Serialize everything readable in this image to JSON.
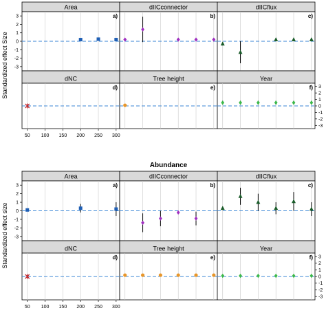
{
  "chart_data": [
    {
      "type": "scatter",
      "title": "",
      "xlabel": "",
      "ylabel": "Standardized effect Size",
      "x_ticks": [
        50,
        100,
        150,
        200,
        250,
        300
      ],
      "y_ticks": [
        -3,
        -2,
        -1,
        0,
        1,
        2,
        3
      ],
      "xlim": [
        35,
        310
      ],
      "ylim": [
        -3.5,
        3.5
      ],
      "reference_line": 0,
      "panels": [
        {
          "name": "Area",
          "letter": "a)",
          "color": "#1f5fb5",
          "marker": "square",
          "points": [
            {
              "x": 200,
              "y": 0.2,
              "lo": 0.0,
              "hi": 0.4
            },
            {
              "x": 250,
              "y": 0.25,
              "lo": 0.05,
              "hi": 0.45
            },
            {
              "x": 300,
              "y": 0.2,
              "lo": 0.0,
              "hi": 0.4
            }
          ]
        },
        {
          "name": "dIICconnector",
          "letter": "b)",
          "color": "#a030c0",
          "marker": "diamond",
          "points": [
            {
              "x": 50,
              "y": 0.2,
              "lo": 0.0,
              "hi": 0.4
            },
            {
              "x": 100,
              "y": 1.4,
              "lo": -0.1,
              "hi": 2.9
            },
            {
              "x": 200,
              "y": 0.2,
              "lo": 0.0,
              "hi": 0.4
            },
            {
              "x": 250,
              "y": 0.2,
              "lo": 0.0,
              "hi": 0.4
            },
            {
              "x": 300,
              "y": 0.2,
              "lo": 0.0,
              "hi": 0.4
            }
          ]
        },
        {
          "name": "dIICflux",
          "letter": "c)",
          "color": "#1a5c2a",
          "marker": "triangle",
          "points": [
            {
              "x": 50,
              "y": -0.3,
              "lo": -0.5,
              "hi": -0.1
            },
            {
              "x": 100,
              "y": -1.3,
              "lo": -2.6,
              "hi": 0.0
            },
            {
              "x": 200,
              "y": 0.2,
              "lo": 0.0,
              "hi": 0.4
            },
            {
              "x": 250,
              "y": 0.2,
              "lo": 0.0,
              "hi": 0.4
            },
            {
              "x": 300,
              "y": 0.2,
              "lo": 0.0,
              "hi": 0.4
            }
          ]
        },
        {
          "name": "dNC",
          "letter": "d)",
          "color": "#c0282e",
          "marker": "cross",
          "points": [
            {
              "x": 50,
              "y": 0.0,
              "lo": 0.0,
              "hi": 0.0
            }
          ]
        },
        {
          "name": "Tree height",
          "letter": "e)",
          "color": "#e8962a",
          "marker": "circle",
          "points": [
            {
              "x": 50,
              "y": 0.1,
              "lo": -0.1,
              "hi": 0.3
            }
          ]
        },
        {
          "name": "Year",
          "letter": "f)",
          "color": "#3cb84a",
          "marker": "diamond",
          "points": [
            {
              "x": 50,
              "y": 0.5,
              "lo": 0.2,
              "hi": 0.8
            },
            {
              "x": 100,
              "y": 0.5,
              "lo": 0.2,
              "hi": 0.8
            },
            {
              "x": 150,
              "y": 0.5,
              "lo": 0.2,
              "hi": 0.8
            },
            {
              "x": 200,
              "y": 0.5,
              "lo": 0.2,
              "hi": 0.8
            },
            {
              "x": 250,
              "y": 0.5,
              "lo": 0.2,
              "hi": 0.8
            },
            {
              "x": 300,
              "y": 0.5,
              "lo": 0.2,
              "hi": 0.8
            }
          ]
        }
      ]
    },
    {
      "type": "scatter",
      "title": "",
      "xlabel": "Abundance",
      "ylabel": "Standardized effect size",
      "x_ticks": [
        50,
        100,
        150,
        200,
        250,
        300
      ],
      "y_ticks": [
        -3,
        -2,
        -1,
        0,
        1,
        2,
        3
      ],
      "xlim": [
        35,
        310
      ],
      "ylim": [
        -3.5,
        3.5
      ],
      "reference_line": 0,
      "panels": [
        {
          "name": "Area",
          "letter": "a)",
          "color": "#1f5fb5",
          "marker": "square",
          "points": [
            {
              "x": 50,
              "y": 0.1,
              "lo": 0.0,
              "hi": 0.2
            },
            {
              "x": 200,
              "y": 0.3,
              "lo": -0.2,
              "hi": 0.8
            },
            {
              "x": 300,
              "y": 0.2,
              "lo": -0.6,
              "hi": 1.0
            }
          ]
        },
        {
          "name": "dIICconnector",
          "letter": "b)",
          "color": "#a030c0",
          "marker": "diamond",
          "points": [
            {
              "x": 100,
              "y": -1.4,
              "lo": -2.5,
              "hi": -0.3
            },
            {
              "x": 150,
              "y": -0.9,
              "lo": -1.8,
              "hi": 0.0
            },
            {
              "x": 200,
              "y": -0.2,
              "lo": -0.3,
              "hi": -0.1
            },
            {
              "x": 250,
              "y": -0.9,
              "lo": -1.7,
              "hi": -0.1
            }
          ]
        },
        {
          "name": "dIICflux",
          "letter": "c)",
          "color": "#1a5c2a",
          "marker": "triangle",
          "points": [
            {
              "x": 50,
              "y": 0.3,
              "lo": 0.1,
              "hi": 0.5
            },
            {
              "x": 100,
              "y": 1.7,
              "lo": 0.7,
              "hi": 2.7
            },
            {
              "x": 150,
              "y": 1.0,
              "lo": 0.0,
              "hi": 2.0
            },
            {
              "x": 200,
              "y": 0.3,
              "lo": -0.4,
              "hi": 1.0
            },
            {
              "x": 250,
              "y": 1.1,
              "lo": 0.0,
              "hi": 2.2
            },
            {
              "x": 300,
              "y": 0.2,
              "lo": -0.6,
              "hi": 1.0
            }
          ]
        },
        {
          "name": "dNC",
          "letter": "d)",
          "color": "#c0282e",
          "marker": "cross",
          "points": [
            {
              "x": 50,
              "y": 0.0,
              "lo": 0.0,
              "hi": 0.0
            }
          ]
        },
        {
          "name": "Tree height",
          "letter": "e)",
          "color": "#e8962a",
          "marker": "circle",
          "points": [
            {
              "x": 50,
              "y": 0.2,
              "lo": 0.0,
              "hi": 0.4
            },
            {
              "x": 100,
              "y": 0.2,
              "lo": 0.0,
              "hi": 0.4
            },
            {
              "x": 150,
              "y": 0.2,
              "lo": 0.0,
              "hi": 0.4
            },
            {
              "x": 200,
              "y": 0.2,
              "lo": 0.0,
              "hi": 0.4
            },
            {
              "x": 250,
              "y": 0.2,
              "lo": 0.0,
              "hi": 0.4
            },
            {
              "x": 300,
              "y": 0.2,
              "lo": 0.0,
              "hi": 0.4
            }
          ]
        },
        {
          "name": "Year",
          "letter": "f)",
          "color": "#3cb84a",
          "marker": "diamond",
          "points": [
            {
              "x": 50,
              "y": 0.1,
              "lo": -0.1,
              "hi": 0.3
            },
            {
              "x": 100,
              "y": 0.1,
              "lo": -0.1,
              "hi": 0.3
            },
            {
              "x": 150,
              "y": 0.1,
              "lo": -0.1,
              "hi": 0.3
            },
            {
              "x": 200,
              "y": 0.1,
              "lo": -0.1,
              "hi": 0.3
            },
            {
              "x": 250,
              "y": 0.1,
              "lo": -0.1,
              "hi": 0.3
            },
            {
              "x": 300,
              "y": 0.1,
              "lo": -0.1,
              "hi": 0.3
            }
          ]
        }
      ]
    }
  ],
  "colors": {
    "strip_bg": "#d9d9d9",
    "grid": "#c8c8c8",
    "zero_line": "#3a86d6",
    "error_bar": "#000000"
  }
}
